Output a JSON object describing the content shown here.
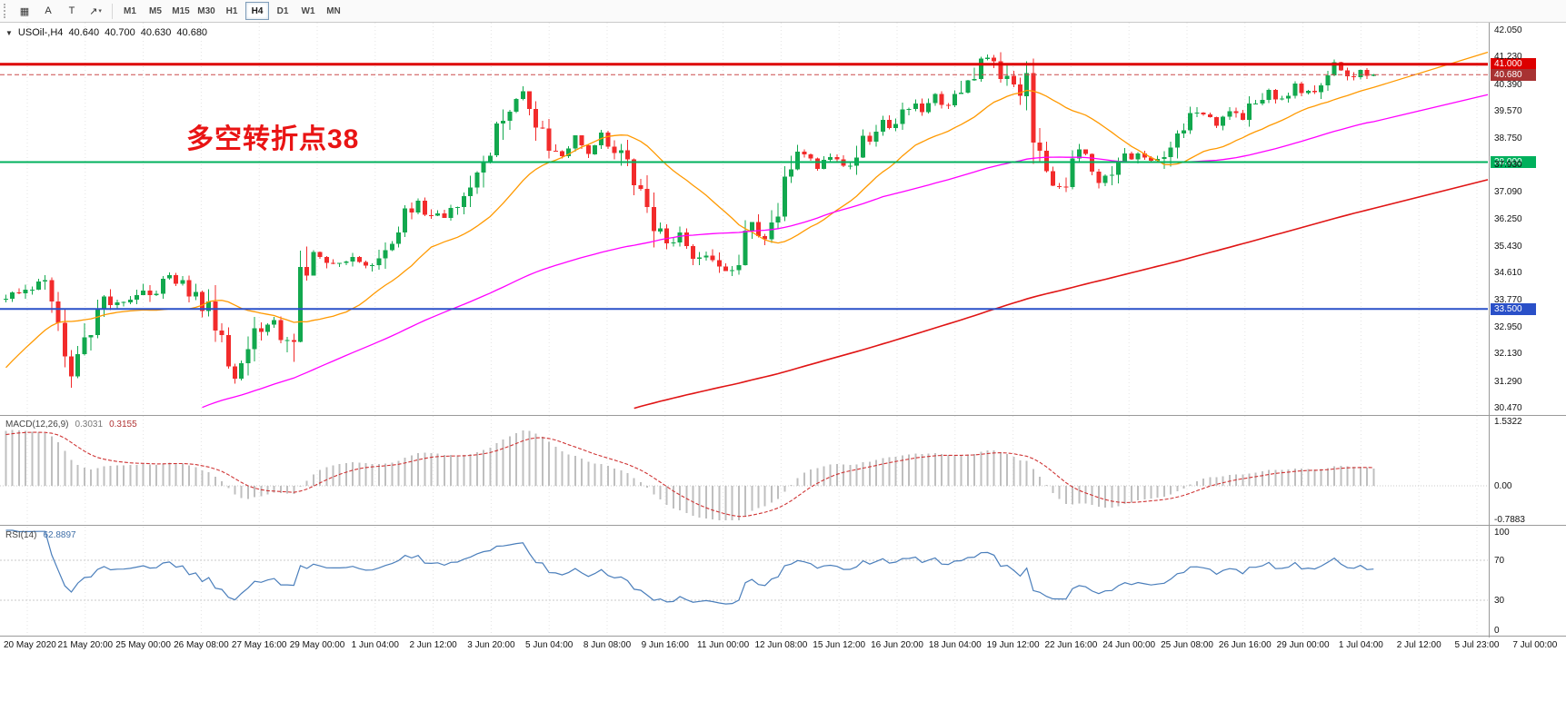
{
  "toolbar": {
    "tools": [
      {
        "glyph": "▦",
        "name": "new-chart-button",
        "dropdown": false
      },
      {
        "glyph": "A",
        "name": "text-label-tool-button",
        "dropdown": false
      },
      {
        "glyph": "T",
        "name": "text-tool-button",
        "dropdown": false
      },
      {
        "glyph": "↗",
        "name": "arrow-line-tool-button",
        "dropdown": true
      }
    ],
    "timeframes": [
      "M1",
      "M5",
      "M15",
      "M30",
      "H1",
      "H4",
      "D1",
      "W1",
      "MN"
    ],
    "active_timeframe": "H4"
  },
  "chart_header": {
    "dropdown_glyph": "▼",
    "symbol_period": "USOil-,H4",
    "open": "40.640",
    "high": "40.700",
    "low": "40.630",
    "close": "40.680"
  },
  "chart_data": {
    "type": "candlestick",
    "symbol": "USOil-",
    "timeframe": "H4",
    "last_ohlc": {
      "open": 40.64,
      "high": 40.7,
      "low": 40.63,
      "close": 40.68
    },
    "candle_count": 210,
    "up_color": "#12a84e",
    "down_color": "#f22b2b",
    "y_range": [
      30.36,
      42.16
    ],
    "price_axis_ticks": [
      42.05,
      41.23,
      40.39,
      39.57,
      38.75,
      37.93,
      37.09,
      36.25,
      35.43,
      34.61,
      33.77,
      32.95,
      32.13,
      31.29,
      30.47
    ],
    "price_path": [
      [
        0,
        33.9
      ],
      [
        3,
        34.05
      ],
      [
        6,
        34.3
      ],
      [
        8,
        33.4
      ],
      [
        9,
        32.2
      ],
      [
        10,
        31.55
      ],
      [
        12,
        32.4
      ],
      [
        15,
        33.6
      ],
      [
        19,
        33.75
      ],
      [
        23,
        34.15
      ],
      [
        25,
        34.5
      ],
      [
        28,
        34.0
      ],
      [
        31,
        33.5
      ],
      [
        33,
        32.6
      ],
      [
        34,
        31.9
      ],
      [
        35,
        31.45
      ],
      [
        38,
        32.7
      ],
      [
        41,
        33.25
      ],
      [
        42,
        32.6
      ],
      [
        44,
        33.05
      ],
      [
        45,
        34.8
      ],
      [
        47,
        35.2
      ],
      [
        50,
        34.9
      ],
      [
        53,
        35.1
      ],
      [
        55,
        34.8
      ],
      [
        58,
        35.5
      ],
      [
        61,
        36.4
      ],
      [
        63,
        36.8
      ],
      [
        65,
        36.2
      ],
      [
        68,
        36.6
      ],
      [
        71,
        37.4
      ],
      [
        73,
        37.9
      ],
      [
        75,
        38.8
      ],
      [
        77,
        39.6
      ],
      [
        79,
        40.3
      ],
      [
        81,
        39.4
      ],
      [
        83,
        38.5
      ],
      [
        85,
        38.2
      ],
      [
        87,
        38.7
      ],
      [
        89,
        38.3
      ],
      [
        91,
        38.8
      ],
      [
        93,
        38.4
      ],
      [
        95,
        37.7
      ],
      [
        97,
        37.0
      ],
      [
        99,
        36.1
      ],
      [
        101,
        35.4
      ],
      [
        103,
        35.7
      ],
      [
        105,
        34.9
      ],
      [
        107,
        35.2
      ],
      [
        109,
        34.7
      ],
      [
        111,
        34.5
      ],
      [
        112,
        35.0
      ],
      [
        114,
        36.1
      ],
      [
        116,
        35.8
      ],
      [
        118,
        36.6
      ],
      [
        120,
        37.8
      ],
      [
        122,
        38.3
      ],
      [
        124,
        37.9
      ],
      [
        126,
        38.2
      ],
      [
        128,
        37.8
      ],
      [
        130,
        38.4
      ],
      [
        132,
        38.9
      ],
      [
        134,
        39.3
      ],
      [
        136,
        39.1
      ],
      [
        138,
        39.8
      ],
      [
        140,
        39.5
      ],
      [
        142,
        40.0
      ],
      [
        144,
        39.7
      ],
      [
        146,
        40.1
      ],
      [
        148,
        40.7
      ],
      [
        150,
        41.25
      ],
      [
        151,
        41.05
      ],
      [
        153,
        40.5
      ],
      [
        155,
        40.15
      ],
      [
        156,
        40.4
      ],
      [
        157,
        38.9
      ],
      [
        158,
        38.2
      ],
      [
        160,
        37.5
      ],
      [
        161,
        37.15
      ],
      [
        163,
        37.9
      ],
      [
        164,
        38.45
      ],
      [
        166,
        37.8
      ],
      [
        167,
        37.35
      ],
      [
        169,
        37.7
      ],
      [
        171,
        38.1
      ],
      [
        173,
        38.35
      ],
      [
        175,
        38.0
      ],
      [
        177,
        38.4
      ],
      [
        179,
        38.9
      ],
      [
        181,
        39.3
      ],
      [
        183,
        39.5
      ],
      [
        185,
        39.2
      ],
      [
        187,
        39.6
      ],
      [
        189,
        39.4
      ],
      [
        191,
        39.9
      ],
      [
        193,
        40.15
      ],
      [
        195,
        39.9
      ],
      [
        197,
        40.3
      ],
      [
        199,
        40.1
      ],
      [
        201,
        40.5
      ],
      [
        203,
        41.05
      ],
      [
        205,
        40.6
      ],
      [
        207,
        40.75
      ],
      [
        209,
        40.68
      ]
    ],
    "hlines": [
      {
        "value": 41.0,
        "label": "41.000",
        "color": "#dd0000",
        "width": 3
      },
      {
        "value": 38.0,
        "label": "38.000",
        "color": "#00b05c",
        "width": 2
      },
      {
        "value": 33.5,
        "label": "33.500",
        "color": "#2a50c8",
        "width": 2
      }
    ],
    "bid": {
      "value": 40.68,
      "label": "40.680",
      "color": "#a83232"
    },
    "moving_averages": [
      {
        "name": "ma-fast-orange",
        "period": 21,
        "color": "#ff9900",
        "width": 1.3
      },
      {
        "name": "ma-medium-magenta",
        "period": 90,
        "color": "#ff00ff",
        "width": 1.3
      },
      {
        "name": "ma-slow-red",
        "period": 230,
        "color": "#e01414",
        "width": 1.6
      }
    ],
    "annotation": {
      "text": "多空转折点38",
      "color": "#e91414"
    },
    "indicator_warmup": {
      "length": 200,
      "start": 22.0,
      "mid": 27.5,
      "mid_index": 170,
      "end": 33.8
    },
    "indicators": {
      "macd": {
        "fast": 12,
        "slow": 26,
        "signal": 9,
        "display_max": 1.5322,
        "display_min": -0.7883
      },
      "rsi": {
        "period": 14,
        "levels": [
          70,
          30
        ]
      }
    }
  },
  "macd_panel": {
    "name": "MACD(12,26,9)",
    "value_main": "0.3031",
    "value_signal": "0.3155",
    "histogram_color": "#bfbfbf",
    "signal_color": "#cf3333",
    "axis_labels": [
      {
        "text": "1.5322",
        "value": 1.5322
      },
      {
        "text": "0.00",
        "value": 0
      },
      {
        "text": "-0.7883",
        "value": -0.7883
      }
    ]
  },
  "rsi_panel": {
    "name": "RSI(14)",
    "value": "62.8897",
    "line_color": "#4a7ebb",
    "axis_labels": [
      {
        "text": "100",
        "value": 100
      },
      {
        "text": "70",
        "value": 70
      },
      {
        "text": "30",
        "value": 30
      },
      {
        "text": "0",
        "value": 0
      }
    ]
  },
  "time_axis": {
    "labels": [
      "20 May 2020",
      "21 May 20:00",
      "25 May 00:00",
      "26 May 08:00",
      "27 May 16:00",
      "29 May 00:00",
      "1 Jun 04:00",
      "2 Jun 12:00",
      "3 Jun 20:00",
      "5 Jun 04:00",
      "8 Jun 08:00",
      "9 Jun 16:00",
      "11 Jun 00:00",
      "12 Jun 08:00",
      "15 Jun 12:00",
      "16 Jun 20:00",
      "18 Jun 04:00",
      "19 Jun 12:00",
      "22 Jun 16:00",
      "24 Jun 00:00",
      "25 Jun 08:00",
      "26 Jun 16:00",
      "29 Jun 00:00",
      "1 Jul 04:00",
      "2 Jul 12:00",
      "5 Jul 23:00",
      "7 Jul 00:00"
    ]
  }
}
